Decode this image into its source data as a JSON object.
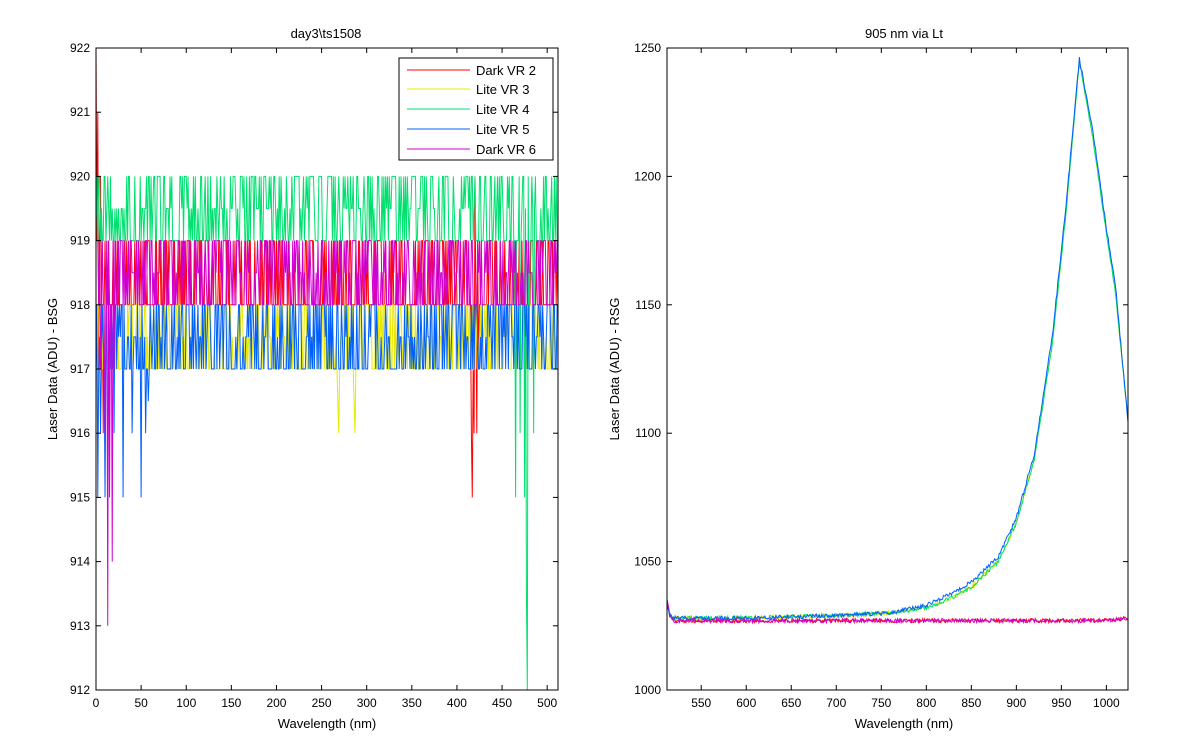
{
  "chart_data": [
    {
      "type": "line",
      "title": "day3\\ts1508",
      "xlabel": "Wavelength (nm)",
      "ylabel": "Laser Data (ADU) - BSG",
      "xlim": [
        0,
        512
      ],
      "ylim": [
        912,
        922
      ],
      "xticks": [
        0,
        50,
        100,
        150,
        200,
        250,
        300,
        350,
        400,
        450,
        500
      ],
      "yticks": [
        912,
        913,
        914,
        915,
        916,
        917,
        918,
        919,
        920,
        921,
        922
      ],
      "legend_position": "top-right",
      "series": [
        {
          "name": "Dark VR 2",
          "color": "#ff0000",
          "base_levels": [
            918,
            918,
            919
          ],
          "x": [
            0,
            1,
            2,
            3,
            5,
            8,
            12,
            20,
            415,
            416,
            417,
            418,
            419,
            420,
            422,
            424,
            426
          ],
          "y": [
            922,
            919,
            921,
            917,
            920,
            916,
            919,
            918,
            918,
            916,
            915,
            917,
            916,
            920,
            916,
            917,
            918
          ]
        },
        {
          "name": "Lite VR 3",
          "color": "#e8e800",
          "base_levels": [
            917,
            917.5,
            918
          ],
          "x": [
            0,
            3,
            6,
            10,
            267,
            268,
            269,
            270,
            285,
            286,
            287,
            288,
            500,
            505,
            512
          ],
          "y": [
            917,
            918,
            917,
            917.5,
            917,
            916.5,
            916,
            917,
            917,
            916.5,
            916,
            917,
            917,
            918,
            917
          ]
        },
        {
          "name": "Lite VR 4",
          "color": "#00e070",
          "base_levels": [
            919,
            919.5,
            920
          ],
          "x": [
            0,
            5,
            60,
            80,
            460,
            465,
            470,
            475,
            477,
            478,
            480,
            485,
            490,
            512
          ],
          "y": [
            919,
            919,
            919,
            919.5,
            919,
            915,
            916,
            915,
            913.5,
            912,
            917,
            916,
            919,
            919
          ]
        },
        {
          "name": "Lite VR 5",
          "color": "#0060ff",
          "base_levels": [
            917,
            917.5,
            918
          ],
          "x": [
            0,
            2,
            5,
            10,
            20,
            30,
            40,
            50,
            55,
            58,
            60,
            65,
            512
          ],
          "y": [
            917,
            915,
            916,
            915,
            916,
            915,
            916,
            915,
            916,
            916.5,
            918,
            917,
            918
          ]
        },
        {
          "name": "Dark VR 6",
          "color": "#d000d0",
          "base_levels": [
            918,
            918.5,
            919
          ],
          "x": [
            0,
            5,
            10,
            13,
            15,
            18,
            20,
            25,
            30,
            512
          ],
          "y": [
            919,
            917,
            916,
            913,
            915,
            914,
            917,
            919,
            918,
            918
          ]
        }
      ]
    },
    {
      "type": "line",
      "title": "905 nm via Lt",
      "xlabel": "Wavelength (nm)",
      "ylabel": "Laser Data (ADU) - RSG",
      "xlim": [
        512,
        1024
      ],
      "ylim": [
        1000,
        1250
      ],
      "xticks": [
        550,
        600,
        650,
        700,
        750,
        800,
        850,
        900,
        950,
        1000
      ],
      "yticks": [
        1000,
        1050,
        1100,
        1150,
        1200,
        1250
      ],
      "series": [
        {
          "color": "#ff0000",
          "x": [
            512,
            515,
            520,
            560,
            600,
            700,
            800,
            900,
            1000,
            1024
          ],
          "y": [
            1035,
            1029,
            1027,
            1027,
            1027,
            1027,
            1027,
            1027,
            1027,
            1028
          ]
        },
        {
          "color": "#e8e800",
          "x": [
            512,
            515,
            520,
            600,
            700,
            760,
            800,
            830,
            850,
            880,
            900,
            920,
            940,
            955,
            970,
            985,
            1000,
            1010,
            1024
          ],
          "y": [
            1034,
            1029,
            1028,
            1028,
            1029,
            1030,
            1032,
            1036,
            1040,
            1050,
            1065,
            1090,
            1135,
            1185,
            1245,
            1215,
            1178,
            1155,
            1105
          ]
        },
        {
          "color": "#00e070",
          "x": [
            512,
            515,
            520,
            600,
            700,
            760,
            800,
            830,
            850,
            880,
            900,
            920,
            940,
            955,
            970,
            985,
            1000,
            1010,
            1024
          ],
          "y": [
            1034,
            1029,
            1028,
            1028,
            1029,
            1030,
            1032,
            1036,
            1040,
            1050,
            1065,
            1090,
            1135,
            1185,
            1245,
            1215,
            1178,
            1155,
            1105
          ]
        },
        {
          "color": "#0060ff",
          "x": [
            512,
            515,
            520,
            600,
            700,
            760,
            800,
            830,
            850,
            880,
            900,
            920,
            940,
            955,
            970,
            985,
            1000,
            1010,
            1024
          ],
          "y": [
            1034,
            1029,
            1028,
            1028,
            1029,
            1030,
            1033,
            1038,
            1042,
            1052,
            1067,
            1092,
            1138,
            1188,
            1246,
            1218,
            1180,
            1158,
            1104
          ]
        },
        {
          "color": "#d000d0",
          "x": [
            512,
            515,
            520,
            560,
            600,
            700,
            800,
            900,
            1000,
            1024
          ],
          "y": [
            1036,
            1029,
            1027,
            1027,
            1027,
            1027,
            1027,
            1027,
            1027,
            1028
          ]
        }
      ]
    }
  ]
}
